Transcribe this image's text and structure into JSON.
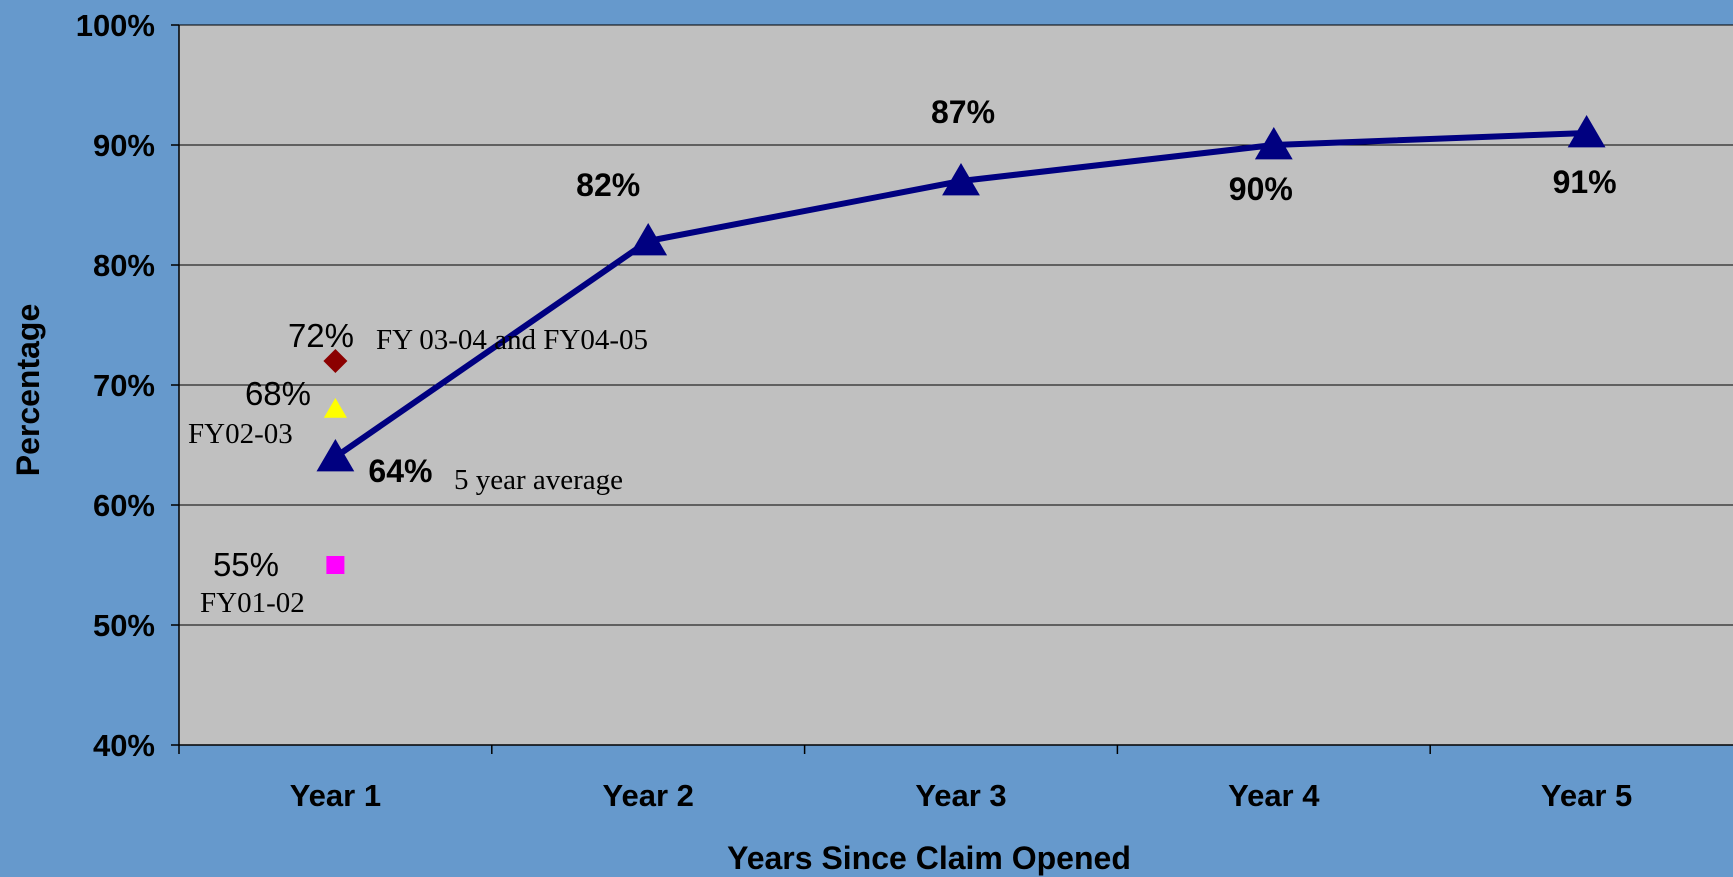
{
  "chart_data": {
    "type": "line",
    "xlabel": "Years Since Claim Opened",
    "ylabel": "Percentage",
    "categories": [
      "Year 1",
      "Year 2",
      "Year 3",
      "Year 4",
      "Year 5"
    ],
    "ylim": [
      40,
      100
    ],
    "yticks": [
      "40%",
      "50%",
      "60%",
      "70%",
      "80%",
      "90%",
      "100%"
    ],
    "grid": true,
    "series": [
      {
        "name": "5 year average",
        "values": [
          64,
          82,
          87,
          90,
          91
        ],
        "labels": [
          "64%",
          "82%",
          "87%",
          "90%",
          "91%"
        ],
        "color": "#000080",
        "marker": "triangle"
      }
    ],
    "points": [
      {
        "name": "FY 03-04 and FY04-05",
        "category": "Year 1",
        "value": 72,
        "label": "72%",
        "marker": "diamond",
        "color": "#8b0000"
      },
      {
        "name": "FY02-03",
        "category": "Year 1",
        "value": 68,
        "label": "68%",
        "marker": "triangle",
        "color": "#ffff00"
      },
      {
        "name": "FY01-02",
        "category": "Year 1",
        "value": 55,
        "label": "55%",
        "marker": "square",
        "color": "#ff00ff"
      }
    ],
    "colors": {
      "background": "#6699cc",
      "plot": "#c0c0c0",
      "grid": "#000000"
    }
  }
}
